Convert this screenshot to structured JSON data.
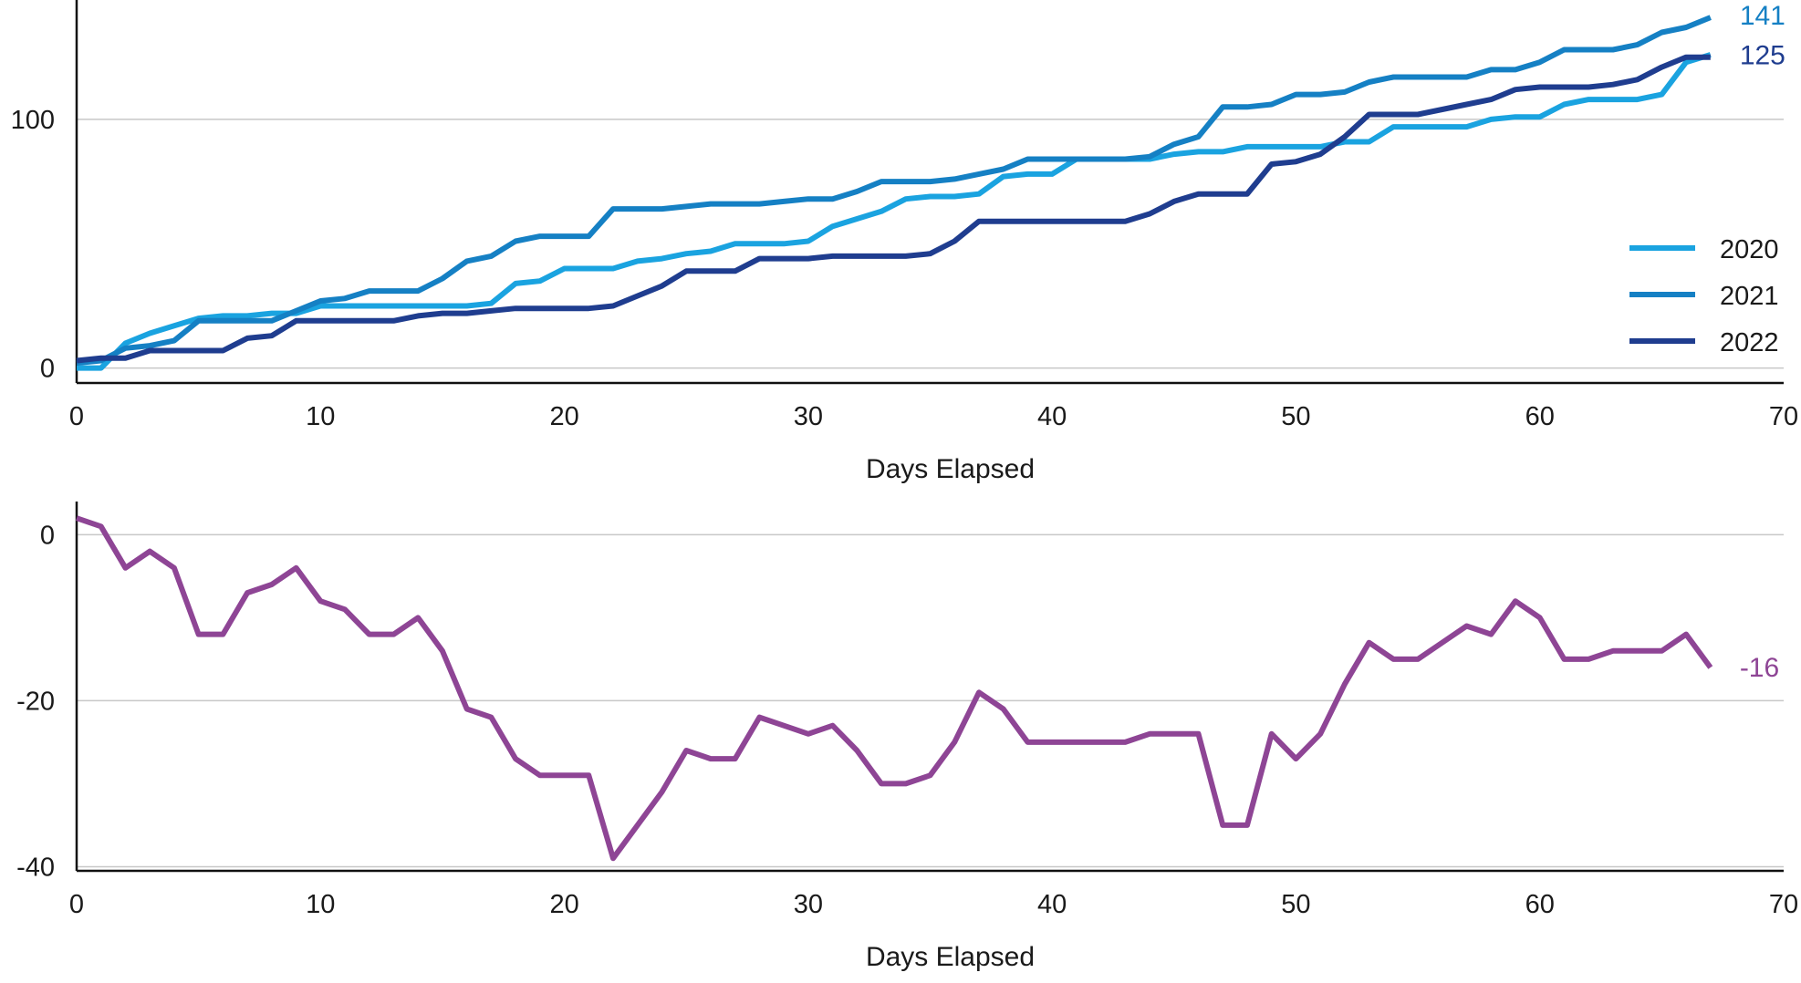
{
  "chart_data": [
    {
      "type": "line",
      "title": "",
      "xlabel": "Days Elapsed",
      "ylabel": "",
      "xlim": [
        0,
        70
      ],
      "ylim": [
        -6,
        148
      ],
      "xticks": [
        0,
        10,
        20,
        30,
        40,
        50,
        60,
        70
      ],
      "yticks": [
        0,
        100
      ],
      "grid": "horizontal",
      "legend_position": "right",
      "x": [
        0,
        1,
        2,
        3,
        4,
        5,
        6,
        7,
        8,
        9,
        10,
        11,
        12,
        13,
        14,
        15,
        16,
        17,
        18,
        19,
        20,
        21,
        22,
        23,
        24,
        25,
        26,
        27,
        28,
        29,
        30,
        31,
        32,
        33,
        34,
        35,
        36,
        37,
        38,
        39,
        40,
        41,
        42,
        43,
        44,
        45,
        46,
        47,
        48,
        49,
        50,
        51,
        52,
        53,
        54,
        55,
        56,
        57,
        58,
        59,
        60,
        61,
        62,
        63,
        64,
        65,
        66,
        67
      ],
      "series": [
        {
          "name": "2020",
          "color": "#1aa3e0",
          "values": [
            0,
            0,
            10,
            14,
            17,
            20,
            21,
            21,
            22,
            22,
            25,
            25,
            25,
            25,
            25,
            25,
            25,
            26,
            34,
            35,
            40,
            40,
            40,
            43,
            44,
            46,
            47,
            50,
            50,
            50,
            51,
            57,
            60,
            63,
            68,
            69,
            69,
            70,
            77,
            78,
            78,
            84,
            84,
            84,
            84,
            86,
            87,
            87,
            89,
            89,
            89,
            89,
            91,
            91,
            97,
            97,
            97,
            97,
            100,
            101,
            101,
            106,
            108,
            108,
            108,
            110,
            123,
            126
          ],
          "end_label": ""
        },
        {
          "name": "2021",
          "color": "#1580c4",
          "values": [
            2,
            3,
            8,
            9,
            11,
            19,
            19,
            19,
            19,
            23,
            27,
            28,
            31,
            31,
            31,
            36,
            43,
            45,
            51,
            53,
            53,
            53,
            64,
            64,
            64,
            65,
            66,
            66,
            66,
            67,
            68,
            68,
            71,
            75,
            75,
            75,
            76,
            78,
            80,
            84,
            84,
            84,
            84,
            84,
            85,
            90,
            93,
            105,
            105,
            106,
            110,
            110,
            111,
            115,
            117,
            117,
            117,
            117,
            120,
            120,
            123,
            128,
            128,
            128,
            130,
            135,
            137,
            141
          ],
          "end_label": "141"
        },
        {
          "name": "2022",
          "color": "#1f3d8f",
          "values": [
            3,
            4,
            4,
            7,
            7,
            7,
            7,
            12,
            13,
            19,
            19,
            19,
            19,
            19,
            21,
            22,
            22,
            23,
            24,
            24,
            24,
            24,
            25,
            29,
            33,
            39,
            39,
            39,
            44,
            44,
            44,
            45,
            45,
            45,
            45,
            46,
            51,
            59,
            59,
            59,
            59,
            59,
            59,
            59,
            62,
            67,
            70,
            70,
            70,
            82,
            83,
            86,
            93,
            102,
            102,
            102,
            104,
            106,
            108,
            112,
            113,
            113,
            113,
            114,
            116,
            121,
            125,
            125
          ],
          "end_label": "125"
        }
      ]
    },
    {
      "type": "line",
      "title": "",
      "xlabel": "Days Elapsed",
      "ylabel": "",
      "xlim": [
        0,
        70
      ],
      "ylim": [
        -40.5,
        4
      ],
      "xticks": [
        0,
        10,
        20,
        30,
        40,
        50,
        60,
        70
      ],
      "yticks": [
        0,
        -20,
        -40
      ],
      "grid": "horizontal",
      "legend_position": "none",
      "x": [
        0,
        1,
        2,
        3,
        4,
        5,
        6,
        7,
        8,
        9,
        10,
        11,
        12,
        13,
        14,
        15,
        16,
        17,
        18,
        19,
        20,
        21,
        22,
        23,
        24,
        25,
        26,
        27,
        28,
        29,
        30,
        31,
        32,
        33,
        34,
        35,
        36,
        37,
        38,
        39,
        40,
        41,
        42,
        43,
        44,
        45,
        46,
        47,
        48,
        49,
        50,
        51,
        52,
        53,
        54,
        55,
        56,
        57,
        58,
        59,
        60,
        61,
        62,
        63,
        64,
        65,
        66,
        67
      ],
      "series": [
        {
          "name": "",
          "color": "#8e4595",
          "values": [
            2,
            1,
            -4,
            -2,
            -4,
            -12,
            -12,
            -7,
            -6,
            -4,
            -8,
            -9,
            -12,
            -12,
            -10,
            -14,
            -21,
            -22,
            -27,
            -29,
            -29,
            -29,
            -39,
            -35,
            -31,
            -26,
            -27,
            -27,
            -22,
            -23,
            -24,
            -23,
            -26,
            -30,
            -30,
            -29,
            -25,
            -19,
            -21,
            -25,
            -25,
            -25,
            -25,
            -25,
            -24,
            -24,
            -24,
            -35,
            -35,
            -24,
            -27,
            -24,
            -18,
            -13,
            -15,
            -15,
            -13,
            -11,
            -12,
            -8,
            -10,
            -15,
            -15,
            -14,
            -14,
            -14,
            -12,
            -16
          ],
          "end_label": "-16"
        }
      ]
    }
  ]
}
